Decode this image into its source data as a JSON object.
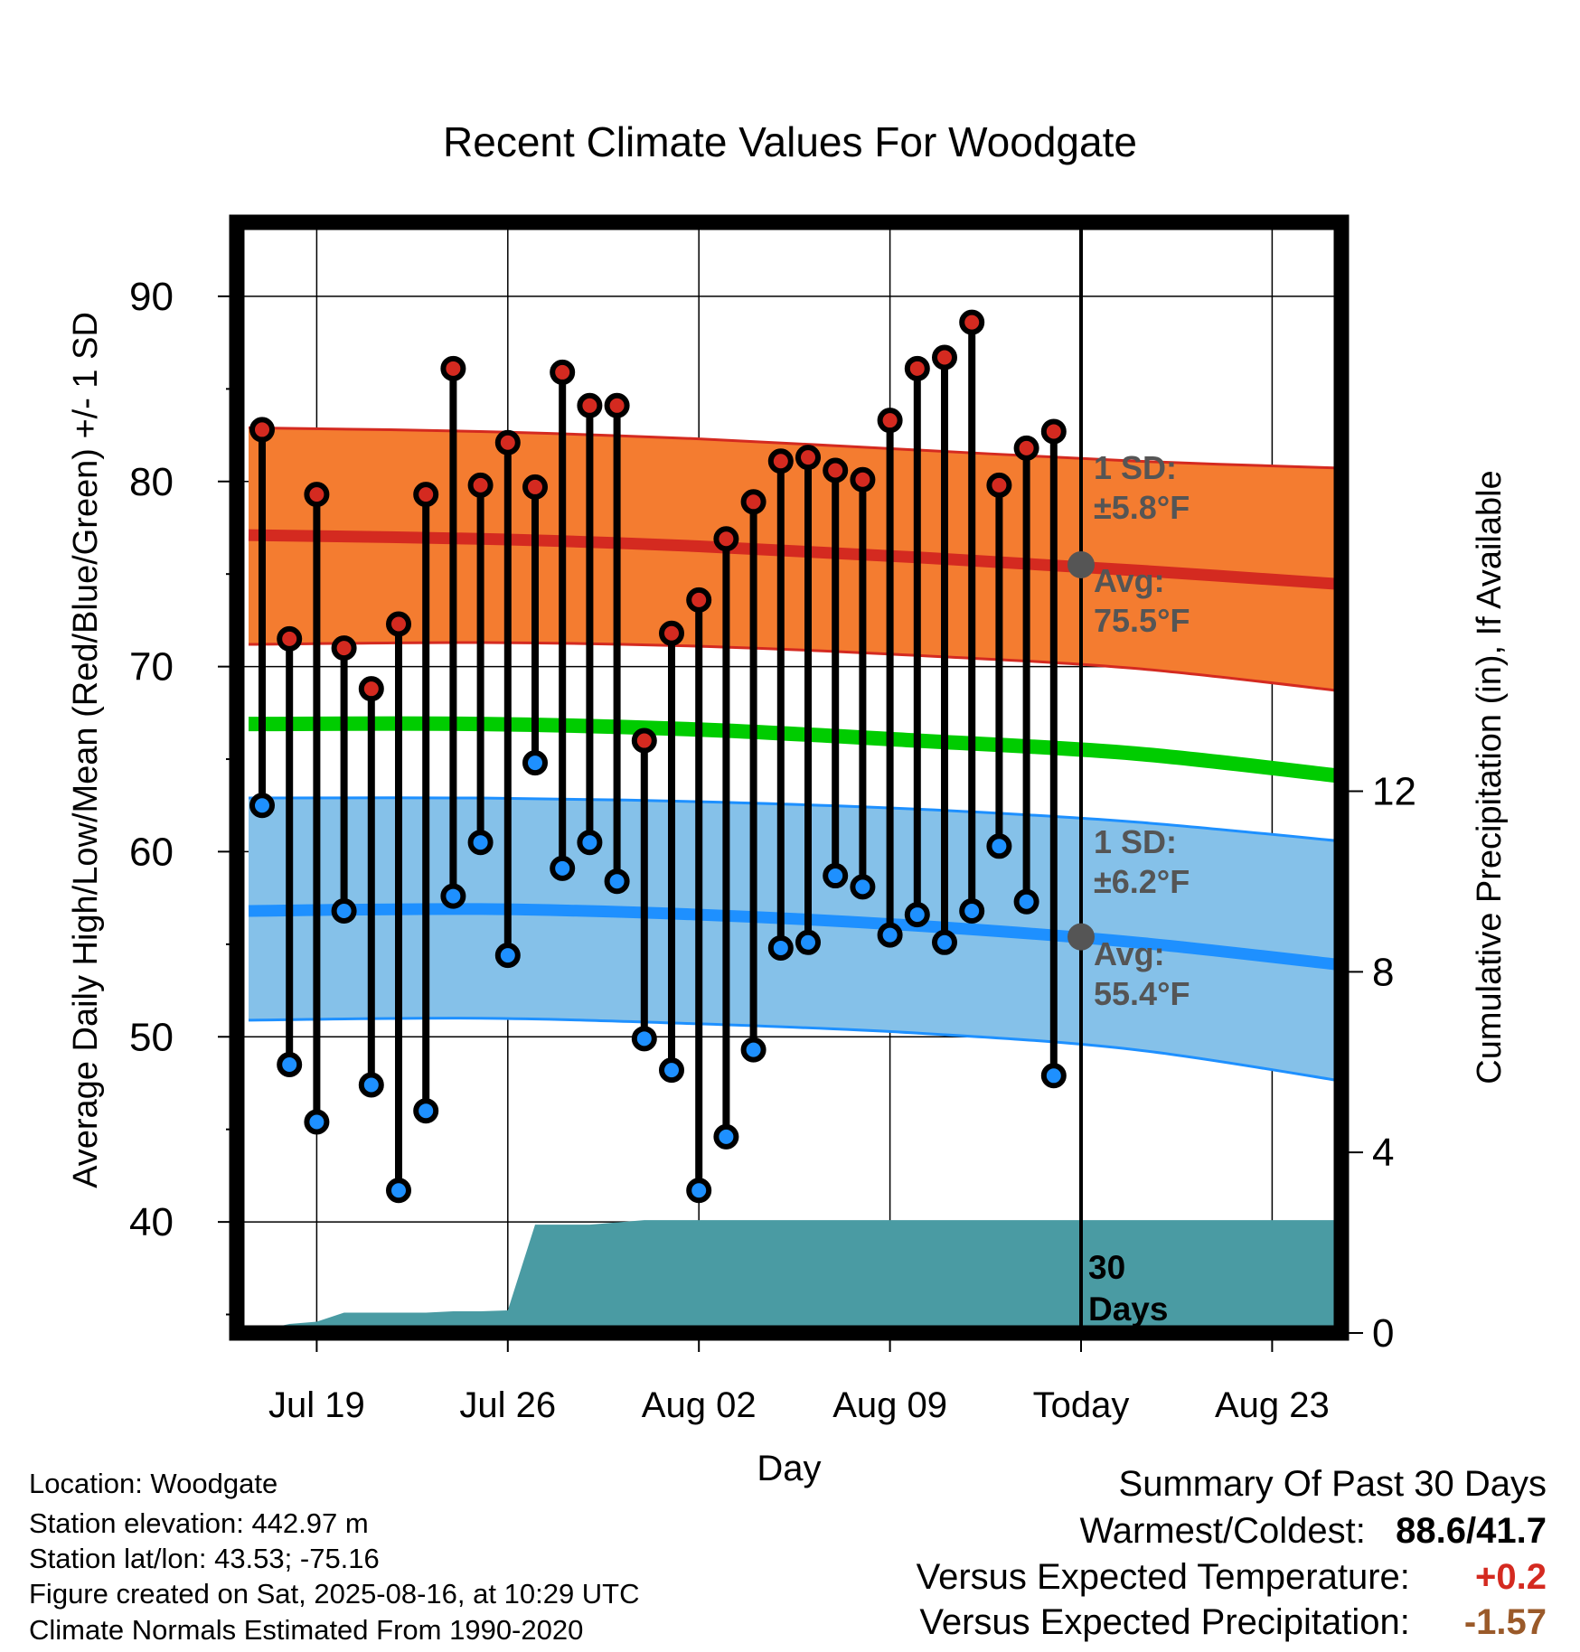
{
  "chart_data": {
    "type": "line",
    "title": "Recent Climate Values For Woodgate",
    "xlabel": "Day",
    "ylabel": "Average Daily High/Low/Mean (Red/Blue/Green) +/- 1 SD",
    "y2label": "Cumulative Precipitation (in), If Available",
    "x_tick_labels": [
      "Jul 19",
      "Jul 26",
      "Aug 02",
      "Aug 09",
      "Today",
      "Aug 23"
    ],
    "y_ticks": [
      "40",
      "50",
      "60",
      "70",
      "80",
      "90"
    ],
    "y2_ticks": [
      "0",
      "4",
      "8",
      "12"
    ],
    "ylim": [
      34,
      94
    ],
    "y2lim": [
      0,
      24.6
    ],
    "dates": [
      "Jul 17",
      "Jul 18",
      "Jul 19",
      "Jul 20",
      "Jul 21",
      "Jul 22",
      "Jul 23",
      "Jul 24",
      "Jul 25",
      "Jul 26",
      "Jul 27",
      "Jul 28",
      "Jul 29",
      "Jul 30",
      "Jul 31",
      "Aug 01",
      "Aug 02",
      "Aug 03",
      "Aug 04",
      "Aug 05",
      "Aug 06",
      "Aug 07",
      "Aug 08",
      "Aug 09",
      "Aug 10",
      "Aug 11",
      "Aug 12",
      "Aug 13",
      "Aug 14",
      "Aug 15"
    ],
    "series": [
      {
        "name": "High",
        "color": "#d42a20",
        "values": [
          82.8,
          71.5,
          79.3,
          71.0,
          68.8,
          72.3,
          79.3,
          86.1,
          79.8,
          82.1,
          79.7,
          85.9,
          84.1,
          84.1,
          66.0,
          71.8,
          73.6,
          76.9,
          78.9,
          81.1,
          81.3,
          80.6,
          80.1,
          83.3,
          86.1,
          86.7,
          88.6,
          79.8,
          81.8,
          82.7
        ]
      },
      {
        "name": "Low",
        "color": "#1e90ff",
        "values": [
          62.5,
          48.5,
          45.4,
          56.8,
          47.4,
          41.7,
          46.0,
          57.6,
          60.5,
          54.4,
          64.8,
          59.1,
          60.5,
          58.4,
          49.9,
          48.2,
          41.7,
          44.6,
          49.3,
          54.8,
          55.1,
          58.7,
          58.1,
          55.5,
          56.6,
          55.1,
          56.8,
          60.3,
          57.3,
          47.9
        ]
      }
    ],
    "normals": {
      "days": [
        0,
        8,
        16,
        24,
        32,
        40
      ],
      "high_avg": [
        77.1,
        76.9,
        76.5,
        75.9,
        75.2,
        74.4
      ],
      "high_upper": [
        82.9,
        82.7,
        82.3,
        81.7,
        81.1,
        80.7
      ],
      "high_lower": [
        71.2,
        71.3,
        71.1,
        70.6,
        69.9,
        68.6
      ],
      "mean_avg": [
        66.9,
        66.9,
        66.6,
        66.0,
        65.3,
        64.0
      ],
      "low_avg": [
        56.8,
        56.9,
        56.6,
        56.0,
        55.1,
        53.8
      ],
      "low_upper": [
        62.9,
        62.9,
        62.7,
        62.3,
        61.6,
        60.5
      ],
      "low_lower": [
        50.9,
        51.0,
        50.7,
        50.2,
        49.3,
        47.5
      ],
      "high_sd_label": [
        "1 SD:",
        "±5.8°F"
      ],
      "high_avg_label": [
        "Avg:",
        "75.5°F"
      ],
      "low_sd_label": [
        "1 SD:",
        "±6.2°F"
      ],
      "low_avg_label": [
        "Avg:",
        "55.4°F"
      ]
    },
    "precip": {
      "days": [
        0,
        1,
        2,
        3,
        4,
        5,
        6,
        7,
        8,
        9,
        10,
        11,
        12,
        13,
        14,
        15,
        30,
        40
      ],
      "cumulative": [
        0.0,
        0.2,
        0.25,
        0.45,
        0.45,
        0.45,
        0.45,
        0.48,
        0.48,
        0.5,
        2.4,
        2.4,
        2.4,
        2.45,
        2.5,
        2.5,
        2.5,
        2.5
      ],
      "color": "#4a9ba3"
    },
    "period_label": [
      "30",
      "Days"
    ],
    "grid": true
  },
  "info": {
    "location": "Location: Woodgate",
    "elevation": "Station elevation: 442.97 m",
    "latlon": "Station lat/lon: 43.53; -75.16",
    "created": "Figure created on Sat, 2025-08-16, at 10:29 UTC",
    "normals": "Climate Normals Estimated From 1990-2020"
  },
  "summary": {
    "title": "Summary Of Past 30 Days",
    "warm_cold_label": "Warmest/Coldest:",
    "warmest": "88.6",
    "coldest": "41.7",
    "temp_label": "Versus Expected Temperature:",
    "temp_value": "+0.2",
    "precip_label": "Versus Expected Precipitation:",
    "precip_value": "-1.57",
    "temp_color": "#d42a20",
    "precip_color": "#9a5a2a"
  }
}
